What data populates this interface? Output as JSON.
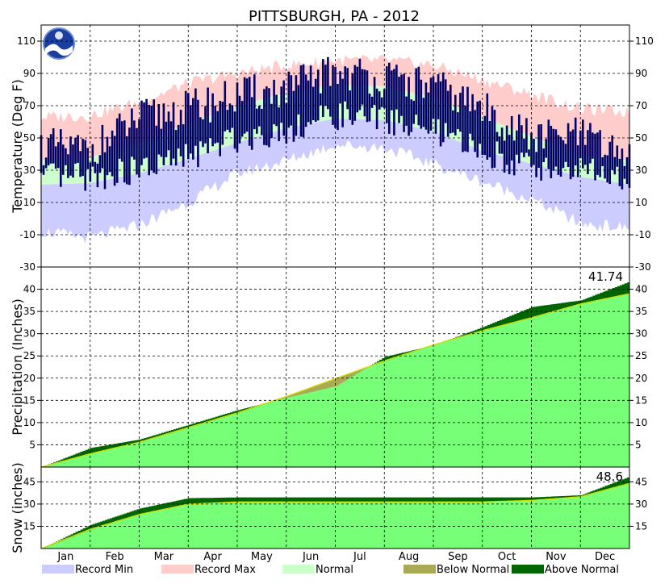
{
  "title": "PITTSBURGH, PA - 2012",
  "colors": {
    "record_min": "#ccccff",
    "record_max": "#ffcccc",
    "normal": "#ccffcc",
    "observed_temp": "#000066",
    "below_normal": "#aaaa55",
    "above_normal": "#006600",
    "normal_precip": "#77ff77",
    "normal_line": "#dddd00"
  },
  "months": [
    "Jan",
    "Feb",
    "Mar",
    "Apr",
    "May",
    "Jun",
    "Jul",
    "Aug",
    "Sep",
    "Oct",
    "Nov",
    "Dec"
  ],
  "legend": [
    {
      "label": "Record Min",
      "color": "#ccccff"
    },
    {
      "label": "Record Max",
      "color": "#ffcccc"
    },
    {
      "label": "Normal",
      "color": "#ccffcc"
    },
    {
      "label": "Below Normal",
      "color": "#aaaa55"
    },
    {
      "label": "Above Normal",
      "color": "#006600"
    }
  ],
  "chart_data": [
    {
      "type": "area",
      "panel": "temperature",
      "ylabel": "Temperature (Deg F)",
      "ylim": [
        -30,
        120
      ],
      "yticks": [
        -30,
        -10,
        10,
        30,
        50,
        70,
        90,
        110
      ],
      "grid": true,
      "x_months": [
        "Jan 1",
        "Feb 1",
        "Mar 1",
        "Apr 1",
        "May 1",
        "Jun 1",
        "Jul 1",
        "Aug 1",
        "Sep 1",
        "Oct 1",
        "Nov 1",
        "Dec 1",
        "Dec 31"
      ],
      "series": [
        {
          "name": "Record Max",
          "values": [
            63,
            64,
            72,
            84,
            90,
            95,
            98,
            98,
            95,
            86,
            77,
            68,
            66
          ]
        },
        {
          "name": "Record Min",
          "values": [
            -8,
            -12,
            -4,
            10,
            28,
            36,
            46,
            44,
            34,
            23,
            12,
            -3,
            -6
          ]
        },
        {
          "name": "Normal High",
          "values": [
            36,
            38,
            47,
            59,
            70,
            78,
            83,
            82,
            75,
            63,
            51,
            40,
            36
          ]
        },
        {
          "name": "Normal Low",
          "values": [
            21,
            22,
            28,
            37,
            47,
            56,
            62,
            61,
            54,
            42,
            34,
            26,
            21
          ]
        },
        {
          "name": "Observed High",
          "values": [
            45,
            42,
            62,
            68,
            76,
            80,
            92,
            86,
            82,
            68,
            50,
            52,
            35
          ]
        },
        {
          "name": "Observed Low",
          "values": [
            25,
            26,
            30,
            38,
            50,
            55,
            64,
            62,
            54,
            42,
            32,
            30,
            25
          ]
        }
      ]
    },
    {
      "type": "area",
      "panel": "precipitation",
      "ylabel": "Precipitation (Inches)",
      "ylim": [
        0,
        45
      ],
      "yticks": [
        5,
        10,
        15,
        20,
        25,
        30,
        35,
        40
      ],
      "total_label": "41.74",
      "grid": true,
      "x_months": [
        "Jan 1",
        "Feb 1",
        "Mar 1",
        "Apr 1",
        "May 1",
        "Jun 1",
        "Jul 1",
        "Aug 1",
        "Sep 1",
        "Oct 1",
        "Nov 1",
        "Dec 1",
        "Dec 31"
      ],
      "series": [
        {
          "name": "Normal",
          "values": [
            0,
            3.0,
            5.6,
            8.9,
            12.2,
            15.9,
            19.9,
            23.9,
            27.5,
            30.7,
            33.6,
            36.7,
            39.0
          ]
        },
        {
          "name": "Observed",
          "values": [
            0,
            4.3,
            6.2,
            9.5,
            12.8,
            15.6,
            18.2,
            24.8,
            27.4,
            31.5,
            36.0,
            37.5,
            41.74
          ]
        }
      ]
    },
    {
      "type": "area",
      "panel": "snow",
      "ylabel": "Snow (inches)",
      "ylim": [
        0,
        55
      ],
      "yticks": [
        15,
        30,
        45
      ],
      "total_label": "48.6",
      "grid": true,
      "x_months": [
        "Jan 1",
        "Feb 1",
        "Mar 1",
        "Apr 1",
        "May 1",
        "Jun 1",
        "Jul 1",
        "Aug 1",
        "Sep 1",
        "Oct 1",
        "Nov 1",
        "Dec 1",
        "Dec 31"
      ],
      "series": [
        {
          "name": "Normal",
          "values": [
            0,
            13,
            23,
            30,
            31.5,
            31.5,
            31.5,
            31.5,
            31.5,
            31.5,
            32.5,
            35,
            44
          ]
        },
        {
          "name": "Observed",
          "values": [
            0,
            16,
            27,
            34,
            34.5,
            34.5,
            34.5,
            34.5,
            34.5,
            34.5,
            34.5,
            36,
            48.6
          ]
        }
      ]
    }
  ]
}
